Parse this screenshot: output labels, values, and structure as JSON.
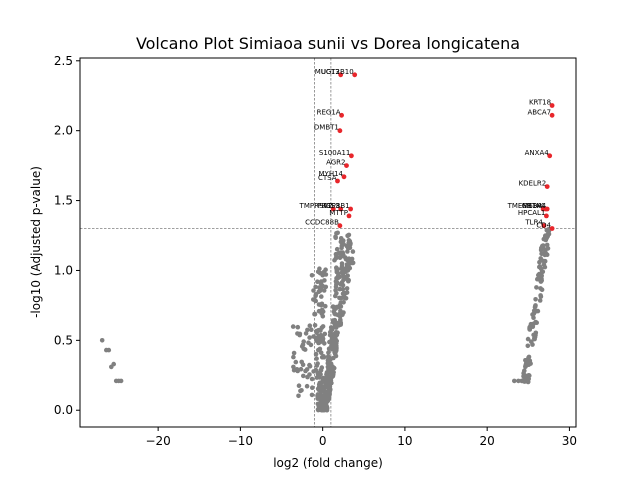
{
  "chart_data": {
    "type": "scatter",
    "title": "Volcano Plot Simiaoa sunii vs Dorea longicatena",
    "xlabel": "log2 (fold change)",
    "ylabel": "-log10 (Adjusted p-value)",
    "xlim": [
      -29.5,
      30.8
    ],
    "ylim": [
      -0.12,
      2.52
    ],
    "xticks": [
      -20,
      -10,
      0,
      10,
      20,
      30
    ],
    "yticks": [
      0.0,
      0.5,
      1.0,
      1.5,
      2.0,
      2.5
    ],
    "xtick_labels": [
      "−20",
      "−10",
      "0",
      "10",
      "20",
      "30"
    ],
    "ytick_labels": [
      "0.0",
      "0.5",
      "1.0",
      "1.5",
      "2.0",
      "2.5"
    ],
    "thresholds": {
      "x": [
        -1,
        1
      ],
      "y": 1.3
    },
    "colors": {
      "significant": "#e8262b",
      "nonsignificant": "#808080",
      "threshold_line": "#808080"
    },
    "significant": [
      {
        "label": "MUC13",
        "x": 2.2,
        "y": 2.4
      },
      {
        "label": "UGT2B10",
        "x": 3.9,
        "y": 2.4
      },
      {
        "label": "REG1A",
        "x": 2.3,
        "y": 2.11
      },
      {
        "label": "DMBT1",
        "x": 2.1,
        "y": 2.0
      },
      {
        "label": "S100A11",
        "x": 3.5,
        "y": 1.82
      },
      {
        "label": "AGR2",
        "x": 2.9,
        "y": 1.75
      },
      {
        "label": "MYH14",
        "x": 2.6,
        "y": 1.67
      },
      {
        "label": "CTSA",
        "x": 1.8,
        "y": 1.64
      },
      {
        "label": "TMPRSS2",
        "x": 1.3,
        "y": 1.44
      },
      {
        "label": "PRSS3",
        "x": 2.2,
        "y": 1.44
      },
      {
        "label": "ATP8B1",
        "x": 3.4,
        "y": 1.44
      },
      {
        "label": "MTTP",
        "x": 3.2,
        "y": 1.39
      },
      {
        "label": "CCDC88B",
        "x": 2.1,
        "y": 1.32
      },
      {
        "label": "KRT18",
        "x": 27.9,
        "y": 2.18
      },
      {
        "label": "ABCA7",
        "x": 27.9,
        "y": 2.11
      },
      {
        "label": "ANXA4",
        "x": 27.6,
        "y": 1.82
      },
      {
        "label": "KDELR2",
        "x": 27.3,
        "y": 1.6
      },
      {
        "label": "TMEM63A",
        "x": 26.8,
        "y": 1.44
      },
      {
        "label": "GSTA4",
        "x": 27.1,
        "y": 1.44
      },
      {
        "label": "NR1H4",
        "x": 27.3,
        "y": 1.44
      },
      {
        "label": "HPCAL1",
        "x": 27.2,
        "y": 1.39
      },
      {
        "label": "TLR4",
        "x": 26.9,
        "y": 1.32
      },
      {
        "label": "CD4",
        "x": 27.9,
        "y": 1.3
      }
    ]
  }
}
